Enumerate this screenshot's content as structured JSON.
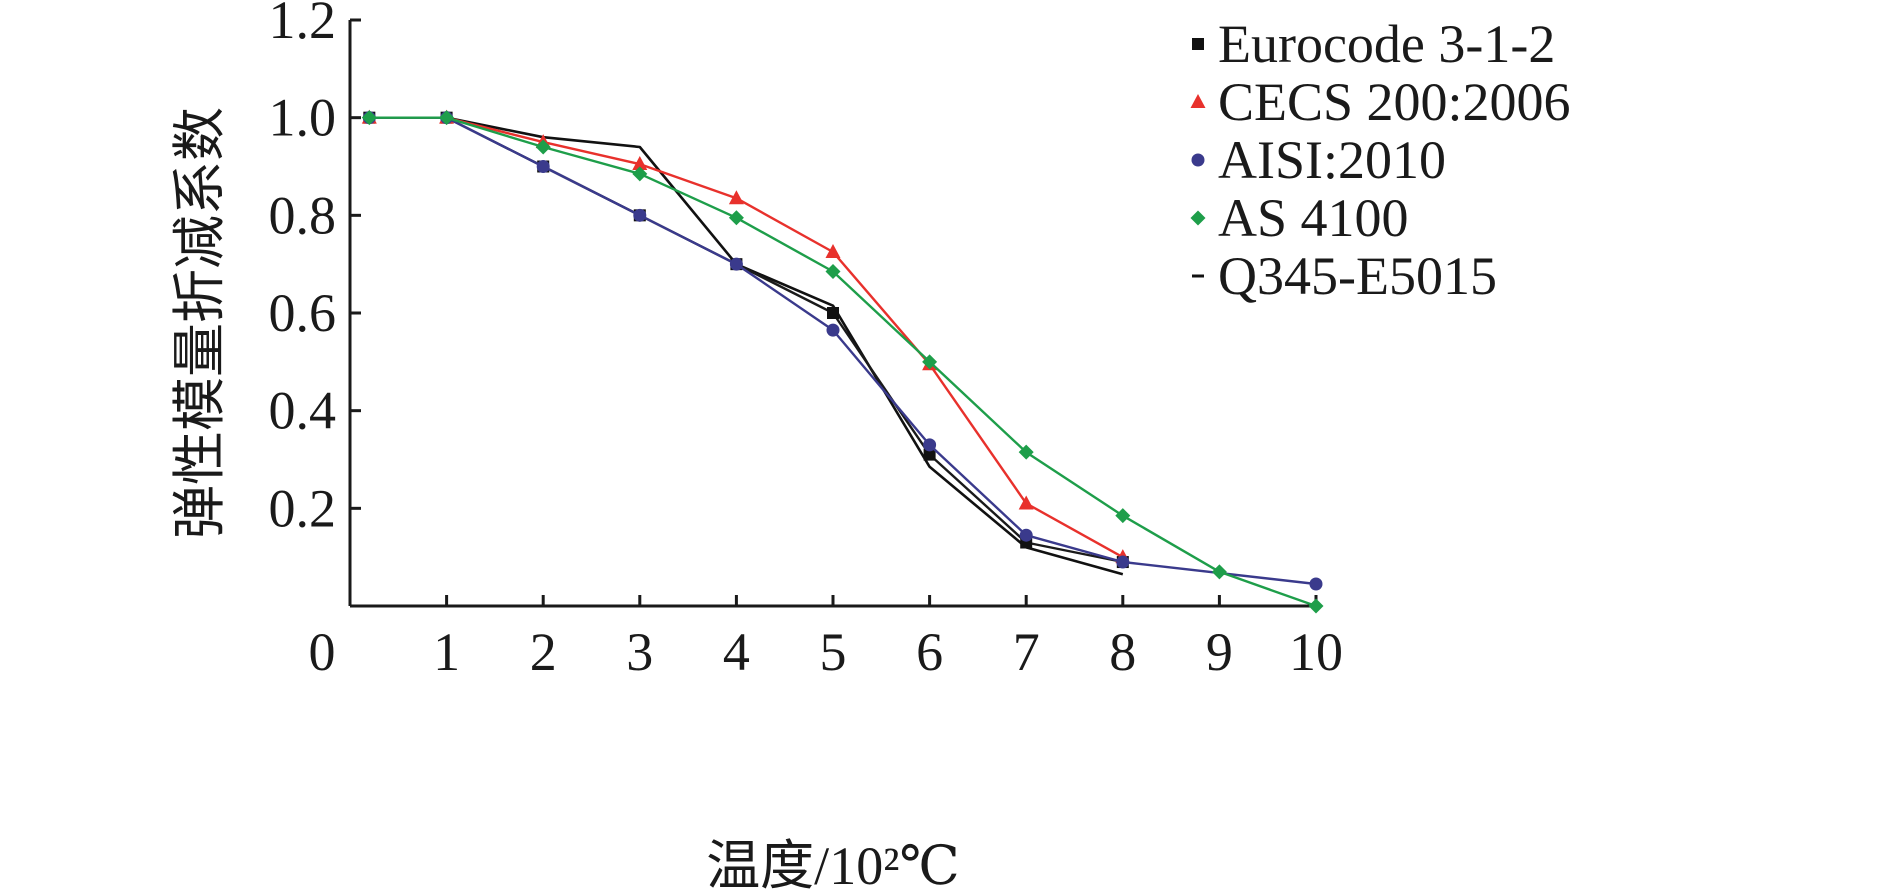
{
  "chart_data": {
    "type": "line",
    "xlabel": "温度/10²℃",
    "ylabel": "弹性模量折减系数",
    "xlim": [
      0,
      10
    ],
    "ylim": [
      0,
      1.2
    ],
    "x_ticks": [
      "0",
      "1",
      "2",
      "3",
      "4",
      "5",
      "6",
      "7",
      "8",
      "9",
      "10"
    ],
    "y_ticks": [
      "0.2",
      "0.4",
      "0.6",
      "0.8",
      "1.0",
      "1.2"
    ],
    "legend_position": "top-right",
    "grid": false,
    "series": [
      {
        "name": "Eurocode 3-1-2",
        "marker": "square",
        "line_color": "#1a1a1a",
        "marker_color": "#111111",
        "x": [
          0.2,
          1,
          2,
          3,
          4,
          5,
          6,
          7,
          8
        ],
        "y": [
          1.0,
          1.0,
          0.9,
          0.8,
          0.7,
          0.6,
          0.31,
          0.13,
          0.09
        ]
      },
      {
        "name": "CECS 200:2006",
        "marker": "triangle",
        "line_color": "#e8312c",
        "marker_color": "#e8312c",
        "x": [
          0.2,
          1,
          2,
          3,
          4,
          5,
          6,
          7,
          8
        ],
        "y": [
          1.0,
          1.0,
          0.95,
          0.905,
          0.835,
          0.725,
          0.495,
          0.21,
          0.1
        ]
      },
      {
        "name": "AISI:2010",
        "marker": "circle",
        "line_color": "#3a3a8c",
        "marker_color": "#3a3a8c",
        "x": [
          0.2,
          1,
          2,
          3,
          4,
          5,
          6,
          7,
          8,
          10
        ],
        "y": [
          1.0,
          1.0,
          0.9,
          0.8,
          0.7,
          0.565,
          0.33,
          0.145,
          0.09,
          0.045
        ]
      },
      {
        "name": "AS 4100",
        "marker": "diamond",
        "line_color": "#1e9e4a",
        "marker_color": "#1e9e4a",
        "x": [
          0.2,
          1,
          2,
          3,
          4,
          5,
          6,
          7,
          8,
          9,
          10
        ],
        "y": [
          1.0,
          1.0,
          0.94,
          0.885,
          0.795,
          0.685,
          0.5,
          0.315,
          0.185,
          0.07,
          0.0
        ]
      },
      {
        "name": "Q345-E5015",
        "marker": "none",
        "line_color": "#111111",
        "marker_color": "#111111",
        "x": [
          1,
          2,
          3,
          4,
          5,
          6,
          7,
          8
        ],
        "y": [
          1.0,
          0.96,
          0.94,
          0.7,
          0.615,
          0.285,
          0.12,
          0.065
        ]
      }
    ]
  }
}
